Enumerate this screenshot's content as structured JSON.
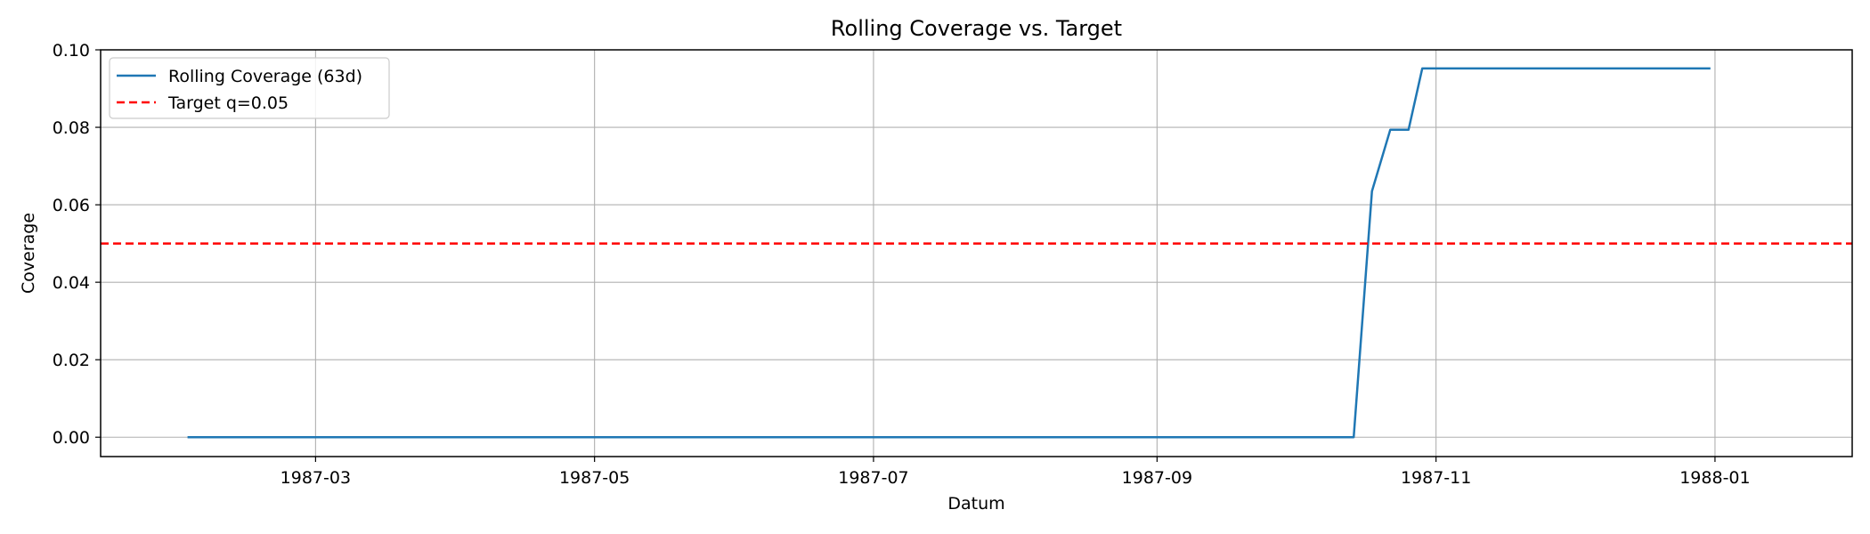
{
  "chart_data": {
    "type": "line",
    "title": "Rolling Coverage vs. Target",
    "xlabel": "Datum",
    "ylabel": "Coverage",
    "x_type": "date",
    "xlim": [
      "1987-01-13",
      "1988-01-31"
    ],
    "ylim": [
      -0.005,
      0.1
    ],
    "x_ticks": [
      "1987-03-01",
      "1987-05-01",
      "1987-07-01",
      "1987-09-01",
      "1987-11-01",
      "1988-01-01"
    ],
    "x_tick_labels": [
      "1987-03",
      "1987-05",
      "1987-07",
      "1987-09",
      "1987-11",
      "1988-01"
    ],
    "y_ticks": [
      0.0,
      0.02,
      0.04,
      0.06,
      0.08,
      0.1
    ],
    "y_tick_labels": [
      "0.00",
      "0.02",
      "0.04",
      "0.06",
      "0.08",
      "0.10"
    ],
    "grid": true,
    "legend_position": "top-left",
    "series": [
      {
        "name": "Rolling Coverage (63d)",
        "color": "#1f77b4",
        "style": "solid",
        "x": [
          "1987-02-01",
          "1987-10-14",
          "1987-10-18",
          "1987-10-22",
          "1987-10-26",
          "1987-10-29",
          "1987-12-31"
        ],
        "y": [
          0.0,
          0.0,
          0.0635,
          0.0794,
          0.0794,
          0.0952,
          0.0952
        ]
      },
      {
        "name": "Target q=0.05",
        "color": "#ff0000",
        "style": "dashed",
        "hline": 0.05
      }
    ]
  }
}
